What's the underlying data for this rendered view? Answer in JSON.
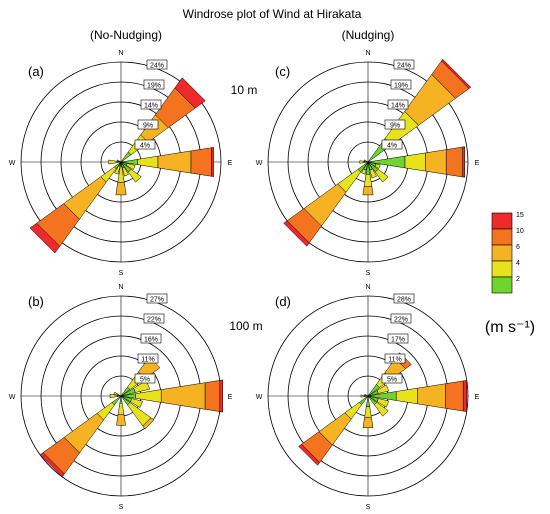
{
  "title": "Windrose plot of Wind at Hirakata",
  "column_titles": [
    "(No-Nudging)",
    "(Nudging)"
  ],
  "height_labels": [
    "10 m",
    "100 m"
  ],
  "compass": {
    "n": "N",
    "s": "S",
    "e": "E",
    "w": "W"
  },
  "colorbar": {
    "unit": "(m s⁻¹)",
    "ticks": [
      "15",
      "10",
      "6",
      "4",
      "2"
    ],
    "colors": [
      "#ee2a2a",
      "#f4731e",
      "#f5b324",
      "#e8e21c",
      "#6fd42c"
    ]
  },
  "chart_data": [
    {
      "type": "windrose",
      "panel": "(a)",
      "ring_labels": [
        "4%",
        "9%",
        "14%",
        "19%",
        "24%"
      ],
      "ring_max": 24,
      "petals": [
        {
          "dir": 45,
          "bands": [
            3,
            5,
            6,
            8,
            3
          ]
        },
        {
          "dir": 90,
          "bands": [
            4,
            5,
            8,
            5,
            0.5
          ]
        },
        {
          "dir": 112.5,
          "bands": [
            1.5,
            2,
            0,
            0,
            0
          ]
        },
        {
          "dir": 135,
          "bands": [
            3,
            3,
            0,
            0,
            0
          ]
        },
        {
          "dir": 157.5,
          "bands": [
            1.5,
            2,
            0,
            0,
            0
          ]
        },
        {
          "dir": 180,
          "bands": [
            1,
            4,
            3,
            0,
            0
          ]
        },
        {
          "dir": 202.5,
          "bands": [
            1,
            2,
            0,
            0,
            0
          ]
        },
        {
          "dir": 225,
          "bands": [
            2,
            4,
            11,
            8,
            2
          ]
        },
        {
          "dir": 270,
          "bands": [
            1,
            2,
            0,
            0,
            0
          ]
        },
        {
          "dir": 292.5,
          "bands": [
            1,
            0,
            0,
            0,
            0
          ]
        }
      ]
    },
    {
      "type": "windrose",
      "panel": "(b)",
      "ring_labels": [
        "5%",
        "11%",
        "16%",
        "22%",
        "27%"
      ],
      "ring_max": 27,
      "petals": [
        {
          "dir": 45,
          "bands": [
            3,
            5,
            5,
            0,
            0
          ]
        },
        {
          "dir": 67.5,
          "bands": [
            4,
            4,
            0,
            0,
            0
          ]
        },
        {
          "dir": 90,
          "bands": [
            4,
            7,
            12,
            4,
            0.8
          ]
        },
        {
          "dir": 112.5,
          "bands": [
            3,
            3,
            0,
            0,
            0
          ]
        },
        {
          "dir": 135,
          "bands": [
            3,
            7,
            1,
            0,
            0
          ]
        },
        {
          "dir": 180,
          "bands": [
            2,
            3,
            3,
            0,
            0
          ]
        },
        {
          "dir": 225,
          "bands": [
            3,
            5,
            11,
            7,
            1
          ]
        },
        {
          "dir": 270,
          "bands": [
            1,
            2,
            0,
            0,
            0
          ]
        },
        {
          "dir": 292.5,
          "bands": [
            1,
            1,
            0,
            0,
            0
          ]
        }
      ]
    },
    {
      "type": "windrose",
      "panel": "(c)",
      "ring_labels": [
        "4%",
        "9%",
        "14%",
        "19%",
        "24%"
      ],
      "ring_max": 24,
      "petals": [
        {
          "dir": 45,
          "bands": [
            7,
            8,
            11,
            4,
            0.5
          ]
        },
        {
          "dir": 90,
          "bands": [
            9,
            5,
            5,
            4,
            0.5
          ]
        },
        {
          "dir": 112.5,
          "bands": [
            2,
            1,
            0,
            0,
            0
          ]
        },
        {
          "dir": 135,
          "bands": [
            3,
            3,
            0,
            0,
            0
          ]
        },
        {
          "dir": 157.5,
          "bands": [
            2,
            2,
            0,
            0,
            0
          ]
        },
        {
          "dir": 180,
          "bands": [
            3,
            3,
            2,
            0,
            0
          ]
        },
        {
          "dir": 202.5,
          "bands": [
            2,
            1,
            0,
            0,
            0
          ]
        },
        {
          "dir": 225,
          "bands": [
            3,
            6,
            10,
            5,
            1
          ]
        },
        {
          "dir": 270,
          "bands": [
            1,
            1,
            0,
            0,
            0
          ]
        },
        {
          "dir": 292.5,
          "bands": [
            1,
            0,
            0,
            0,
            0
          ]
        }
      ]
    },
    {
      "type": "windrose",
      "panel": "(d)",
      "ring_labels": [
        "5%",
        "11%",
        "17%",
        "22%",
        "28%"
      ],
      "ring_max": 28,
      "petals": [
        {
          "dir": 45,
          "bands": [
            4,
            4,
            5,
            2,
            0
          ]
        },
        {
          "dir": 67.5,
          "bands": [
            3,
            3,
            0,
            0,
            0
          ]
        },
        {
          "dir": 90,
          "bands": [
            8,
            6,
            8,
            5,
            1
          ]
        },
        {
          "dir": 112.5,
          "bands": [
            3,
            3,
            0,
            0,
            0
          ]
        },
        {
          "dir": 135,
          "bands": [
            3,
            4,
            0,
            0,
            0
          ]
        },
        {
          "dir": 180,
          "bands": [
            3,
            3,
            3,
            0,
            0
          ]
        },
        {
          "dir": 225,
          "bands": [
            3,
            5,
            9,
            6,
            1
          ]
        },
        {
          "dir": 270,
          "bands": [
            1,
            1,
            0,
            0,
            0
          ]
        },
        {
          "dir": 292.5,
          "bands": [
            1,
            0,
            0,
            0,
            0
          ]
        }
      ]
    }
  ]
}
